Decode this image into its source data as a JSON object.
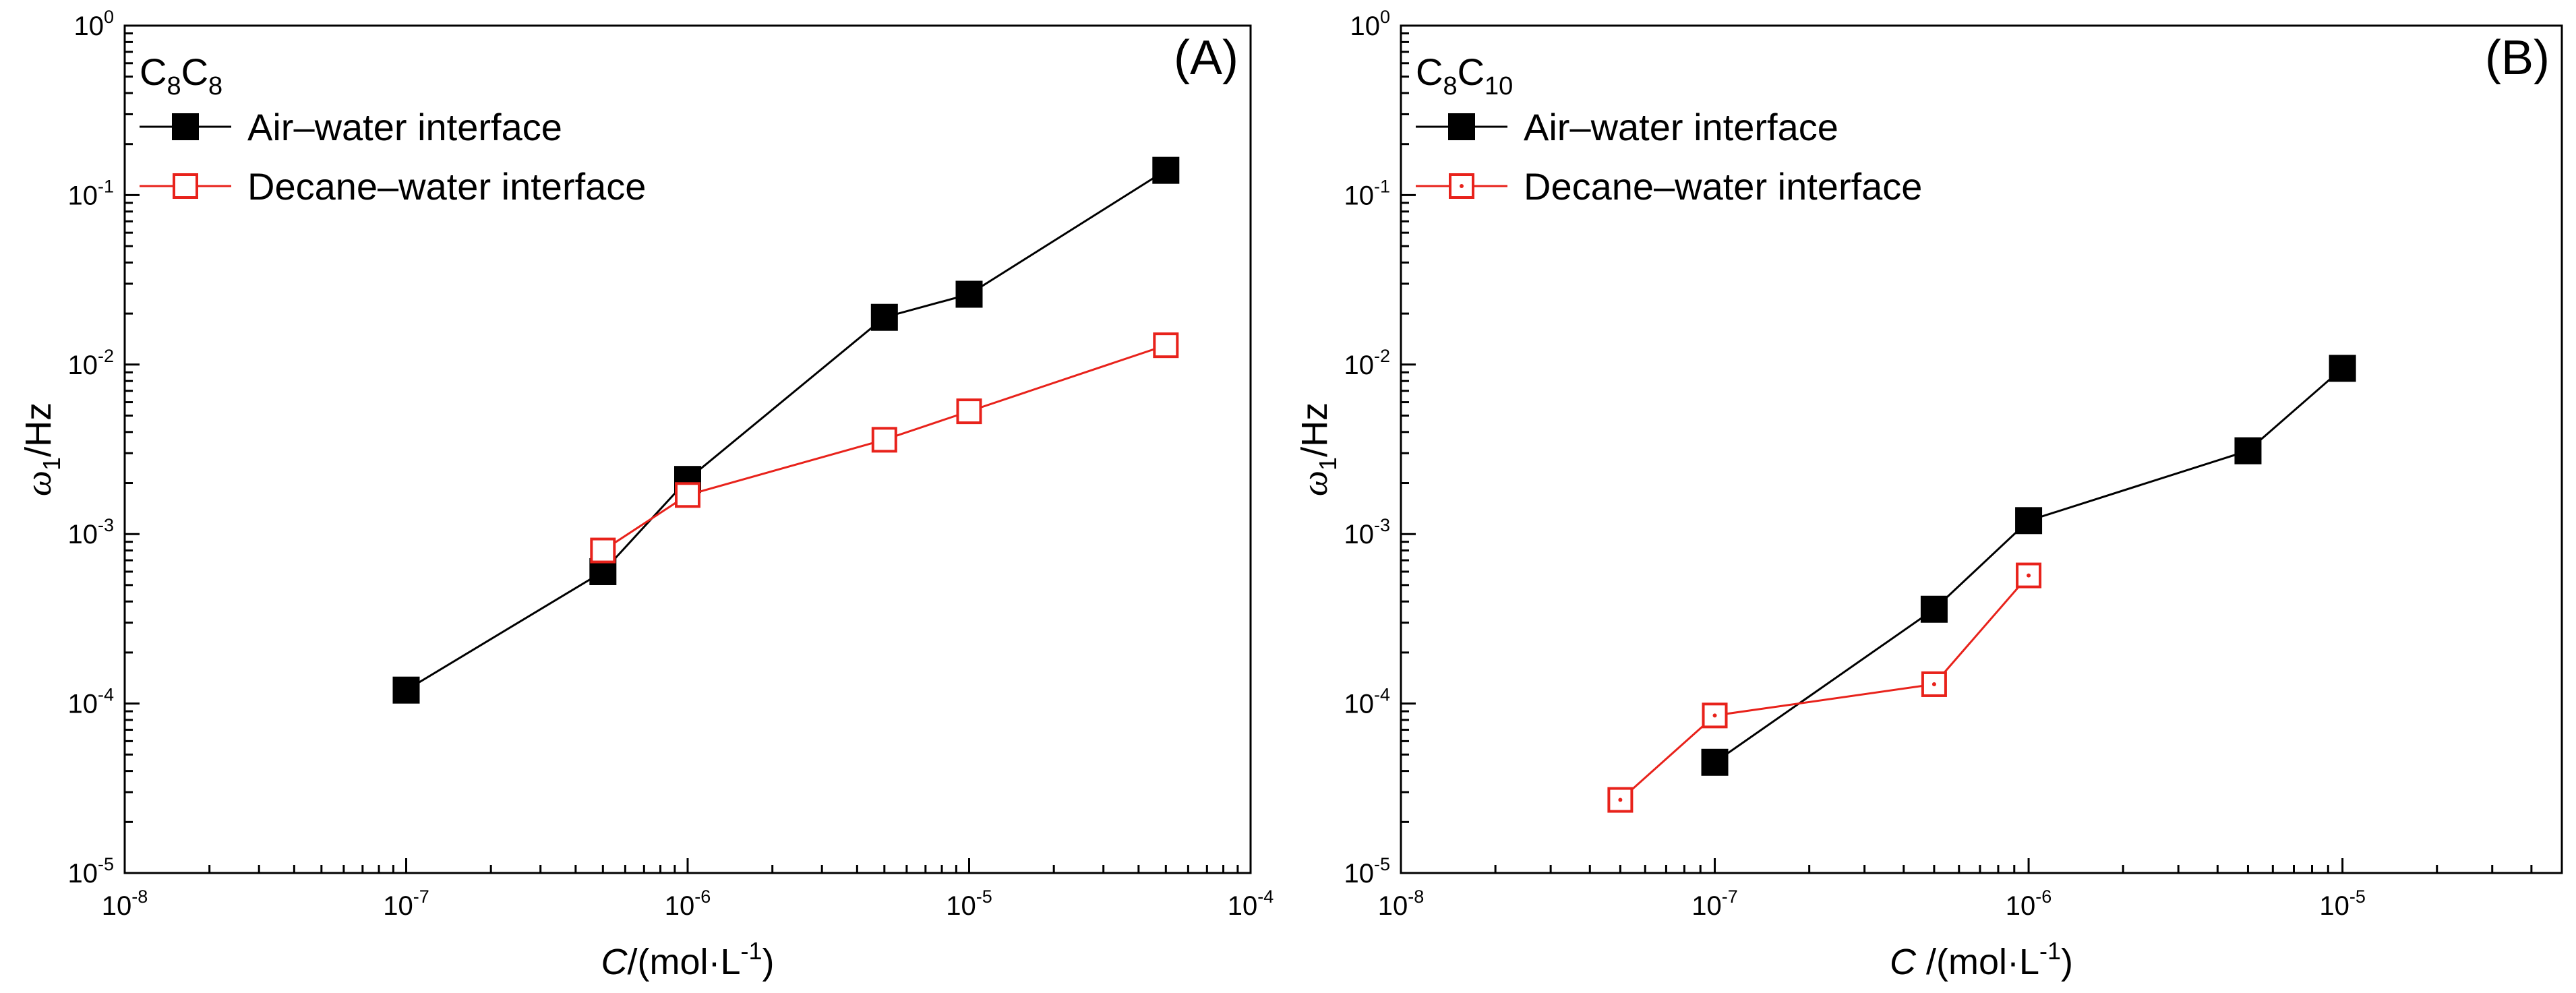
{
  "chart_data": [
    {
      "type": "line",
      "panel_label": "(A)",
      "compound": {
        "base": "C",
        "sub1": "8",
        "base2": "C",
        "sub2": "8"
      },
      "xlabel": {
        "var": "C",
        "unit": "/(mol·L",
        "sup": "-1",
        "close": ")"
      },
      "ylabel": {
        "sym": "ω",
        "sub": "1",
        "unit": "/Hz"
      },
      "xscale": "log",
      "yscale": "log",
      "xlim": [
        1e-08,
        0.0001
      ],
      "ylim": [
        1e-05,
        1
      ],
      "xticks": [
        -8,
        -7,
        -6,
        -5,
        -4
      ],
      "yticks": [
        -5,
        -4,
        -3,
        -2,
        -1,
        0
      ],
      "tick_base": "10",
      "legend_position": "top-left",
      "series": [
        {
          "name": "Air–water interface",
          "color": "#000000",
          "marker": "filled-square",
          "x": [
            1e-07,
            5e-07,
            1e-06,
            5e-06,
            1e-05,
            5e-05
          ],
          "y": [
            0.00012,
            0.0006,
            0.0021,
            0.019,
            0.026,
            0.14
          ]
        },
        {
          "name": "Decane–water interface",
          "color": "#e8221b",
          "marker": "open-square",
          "x": [
            5e-07,
            1e-06,
            5e-06,
            1e-05,
            5e-05
          ],
          "y": [
            0.0008,
            0.0017,
            0.0036,
            0.0053,
            0.013
          ]
        }
      ]
    },
    {
      "type": "line",
      "panel_label": "(B)",
      "compound": {
        "base": "C",
        "sub1": "8",
        "base2": "C",
        "sub2": "10"
      },
      "xlabel": {
        "var": "C",
        "unit": " /(mol·L",
        "sup": "-1",
        "close": ")"
      },
      "ylabel": {
        "sym": "ω",
        "sub": "1",
        "unit": "/Hz"
      },
      "xscale": "log",
      "yscale": "log",
      "xlim": [
        1e-08,
        5e-05
      ],
      "ylim": [
        1e-05,
        1
      ],
      "xticks": [
        -8,
        -7,
        -6,
        -5
      ],
      "yticks": [
        -5,
        -4,
        -3,
        -2,
        -1,
        0
      ],
      "tick_base": "10",
      "legend_position": "top-left",
      "series": [
        {
          "name": "Air–water interface",
          "color": "#000000",
          "marker": "filled-square",
          "x": [
            1e-07,
            5e-07,
            1e-06,
            5e-06,
            1e-05
          ],
          "y": [
            4.5e-05,
            0.00036,
            0.0012,
            0.0031,
            0.0095
          ]
        },
        {
          "name": "Decane–water interface",
          "color": "#e8221b",
          "marker": "open-square-dot",
          "x": [
            5e-08,
            1e-07,
            5e-07,
            1e-06
          ],
          "y": [
            2.7e-05,
            8.5e-05,
            0.00013,
            0.00057
          ]
        }
      ]
    }
  ]
}
